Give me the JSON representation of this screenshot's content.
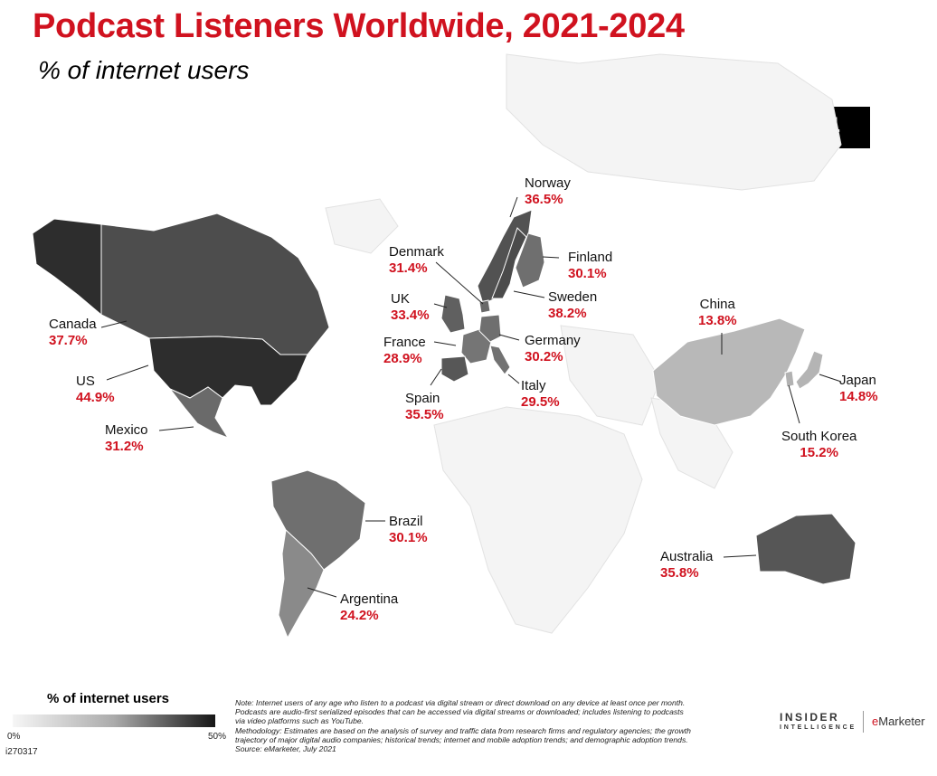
{
  "header": {
    "title": "Podcast Listeners Worldwide, 2021-2024",
    "subtitle": "% of internet users",
    "year": "2024"
  },
  "countries": [
    {
      "name": "Canada",
      "value": "37.7%",
      "share": 37.7
    },
    {
      "name": "US",
      "value": "44.9%",
      "share": 44.9
    },
    {
      "name": "Mexico",
      "value": "31.2%",
      "share": 31.2
    },
    {
      "name": "Brazil",
      "value": "30.1%",
      "share": 30.1
    },
    {
      "name": "Argentina",
      "value": "24.2%",
      "share": 24.2
    },
    {
      "name": "Norway",
      "value": "36.5%",
      "share": 36.5
    },
    {
      "name": "Denmark",
      "value": "31.4%",
      "share": 31.4
    },
    {
      "name": "Finland",
      "value": "30.1%",
      "share": 30.1
    },
    {
      "name": "Sweden",
      "value": "38.2%",
      "share": 38.2
    },
    {
      "name": "UK",
      "value": "33.4%",
      "share": 33.4
    },
    {
      "name": "France",
      "value": "28.9%",
      "share": 28.9
    },
    {
      "name": "Germany",
      "value": "30.2%",
      "share": 30.2
    },
    {
      "name": "Spain",
      "value": "35.5%",
      "share": 35.5
    },
    {
      "name": "Italy",
      "value": "29.5%",
      "share": 29.5
    },
    {
      "name": "China",
      "value": "13.8%",
      "share": 13.8
    },
    {
      "name": "Japan",
      "value": "14.8%",
      "share": 14.8
    },
    {
      "name": "South Korea",
      "value": "15.2%",
      "share": 15.2
    },
    {
      "name": "Australia",
      "value": "35.8%",
      "share": 35.8
    }
  ],
  "legend": {
    "title": "% of internet users",
    "min_label": "0%",
    "max_label": "50%",
    "max_value": 50
  },
  "footer": {
    "chart_id": "i270317",
    "notes": [
      "Note: Internet users of any age who listen to a podcast via digital stream or direct download on any device at least once per month.",
      "Podcasts are audio-first serialized episodes that can be accessed via digital streams or downloaded; includes listening to podcasts",
      "via video platforms such as YouTube.",
      "Methodology: Estimates are based on the analysis of survey and traffic data from research firms and regulatory agencies; the growth",
      "trajectory of major digital audio companies; historical trends; internet and mobile adoption trends; and demographic adoption trends.",
      "Source: eMarketer, July 2021"
    ],
    "brand": "INSIDER",
    "brand_sub": "INTELLIGENCE",
    "brand_em_e": "e",
    "brand_em_rest": "Marketer"
  },
  "colors": {
    "accent": "#d0121f",
    "scale_low": "#f6f6f6",
    "scale_high": "#161616",
    "unshaded_land": "#f4f4f4"
  }
}
